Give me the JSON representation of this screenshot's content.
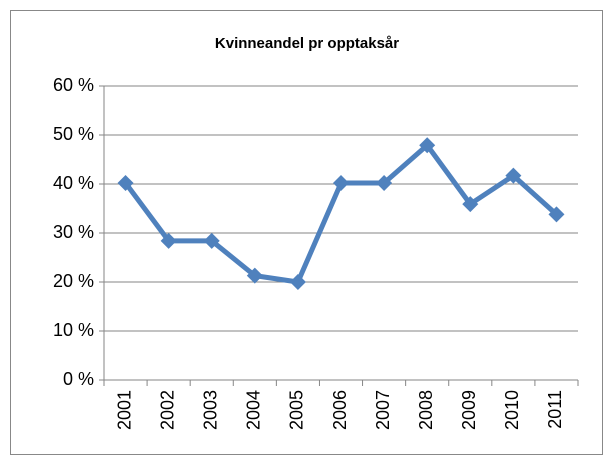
{
  "chart_data": {
    "type": "line",
    "title": "Kvinneandel pr opptaksår",
    "categories": [
      "2001",
      "2002",
      "2003",
      "2004",
      "2005",
      "2006",
      "2007",
      "2008",
      "2009",
      "2010",
      "2011"
    ],
    "values": [
      40.2,
      28.4,
      28.4,
      21.3,
      20.0,
      40.2,
      40.2,
      47.9,
      35.9,
      41.7,
      33.8
    ],
    "color": "#4f81bd",
    "ylim": [
      0,
      60
    ],
    "yticks": [
      {
        "value": 0,
        "label": "0 %"
      },
      {
        "value": 10,
        "label": "10 %"
      },
      {
        "value": 20,
        "label": "20 %"
      },
      {
        "value": 30,
        "label": "30 %"
      },
      {
        "value": 40,
        "label": "40 %"
      },
      {
        "value": 50,
        "label": "50 %"
      },
      {
        "value": 60,
        "label": "60 %"
      }
    ],
    "grid": true
  }
}
